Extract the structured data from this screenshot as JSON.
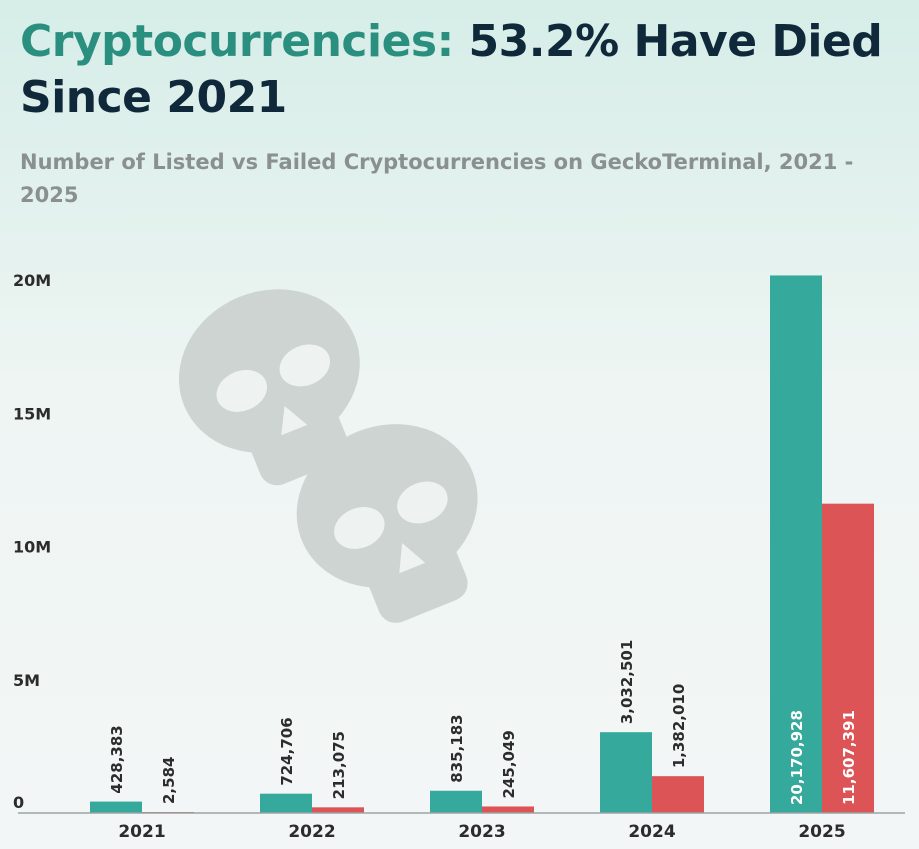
{
  "title": {
    "accent": "Cryptocurrencies:",
    "rest": "53.2% Have Died Since 2021"
  },
  "subtitle": "Number of Listed vs Failed Cryptocurrencies on GeckoTerminal, 2021 - 2025",
  "colors": {
    "listed": "#35a99b",
    "failed": "#dd5456",
    "title_accent": "#2a8f7f",
    "title": "#10293a",
    "skull": "#cdd4d2"
  },
  "chart_data": {
    "type": "bar",
    "title": "Cryptocurrencies: 53.2% Have Died Since 2021",
    "subtitle": "Number of Listed vs Failed Cryptocurrencies on GeckoTerminal, 2021 - 2025",
    "categories": [
      "2021",
      "2022",
      "2023",
      "2024",
      "2025"
    ],
    "series": [
      {
        "values": [
          428383,
          724706,
          835183,
          3032501,
          20170928
        ],
        "labels": [
          "428,383",
          "724,706",
          "835,183",
          "3,032,501",
          "20,170,928"
        ],
        "color": "#35a99b"
      },
      {
        "values": [
          2584,
          213075,
          245049,
          1382010,
          11607391
        ],
        "labels": [
          "2,584",
          "213,075",
          "245,049",
          "1,382,010",
          "11,607,391"
        ],
        "color": "#dd5456"
      }
    ],
    "yticks": [
      0,
      5000000,
      10000000,
      15000000,
      20000000
    ],
    "ytick_labels": [
      "0",
      "5M",
      "10M",
      "15M",
      "20M"
    ],
    "ylim": [
      0,
      20000000
    ],
    "xlabel": "",
    "ylabel": "",
    "grid": false,
    "legend": "none"
  }
}
